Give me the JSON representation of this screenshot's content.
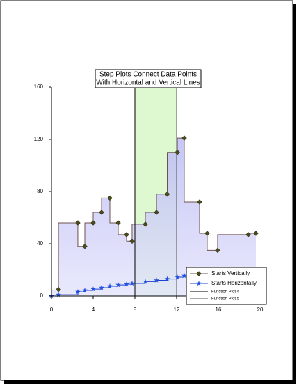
{
  "chart_data": {
    "type": "step",
    "title_lines": [
      "Step Plots Connect Data Points",
      "With Horizontal and Vertical Lines"
    ],
    "xlim": [
      0,
      20
    ],
    "xticks": [
      0,
      4,
      8,
      12,
      16,
      20
    ],
    "ylim": [
      0,
      160
    ],
    "yticks": [
      0,
      40,
      80,
      120,
      160
    ],
    "series": [
      {
        "name": "Starts Vertically",
        "step": "vertical",
        "marker": "diamond",
        "color": "#705050",
        "marker_color": "#4a4a1a",
        "fill": true,
        "x": [
          0.67,
          2.53,
          3.2,
          4.0,
          4.8,
          5.6,
          6.4,
          7.2,
          7.73,
          9.0,
          10.07,
          11.1,
          12.07,
          12.73,
          14.2,
          14.93,
          15.93,
          18.87,
          19.6
        ],
        "values": [
          5,
          56,
          38,
          56,
          64,
          75,
          56,
          47,
          42,
          55,
          64,
          78,
          110,
          121,
          72,
          48,
          35,
          47,
          48
        ]
      },
      {
        "name": "Starts Horizontally",
        "step": "horizontal",
        "marker": "star",
        "color": "#2040d0",
        "marker_color": "#2050e0",
        "fill": false,
        "x": [
          0,
          0.67,
          2.53,
          3.2,
          4.0,
          4.8,
          5.6,
          6.4,
          7.2,
          7.73,
          9.0,
          10.07,
          11.1,
          12.07,
          12.73
        ],
        "values": [
          0,
          1,
          3.2,
          4.3,
          5.3,
          6.4,
          7.5,
          8.5,
          9,
          9.6,
          11,
          12,
          13,
          14.4,
          15.5
        ]
      }
    ],
    "function_plots": [
      {
        "name": "Function Plot 4",
        "x": 8,
        "color": "#000000"
      },
      {
        "name": "Function Plot 5",
        "x": 12,
        "color": "#555555"
      }
    ],
    "band_color": "#d8f8c8"
  }
}
